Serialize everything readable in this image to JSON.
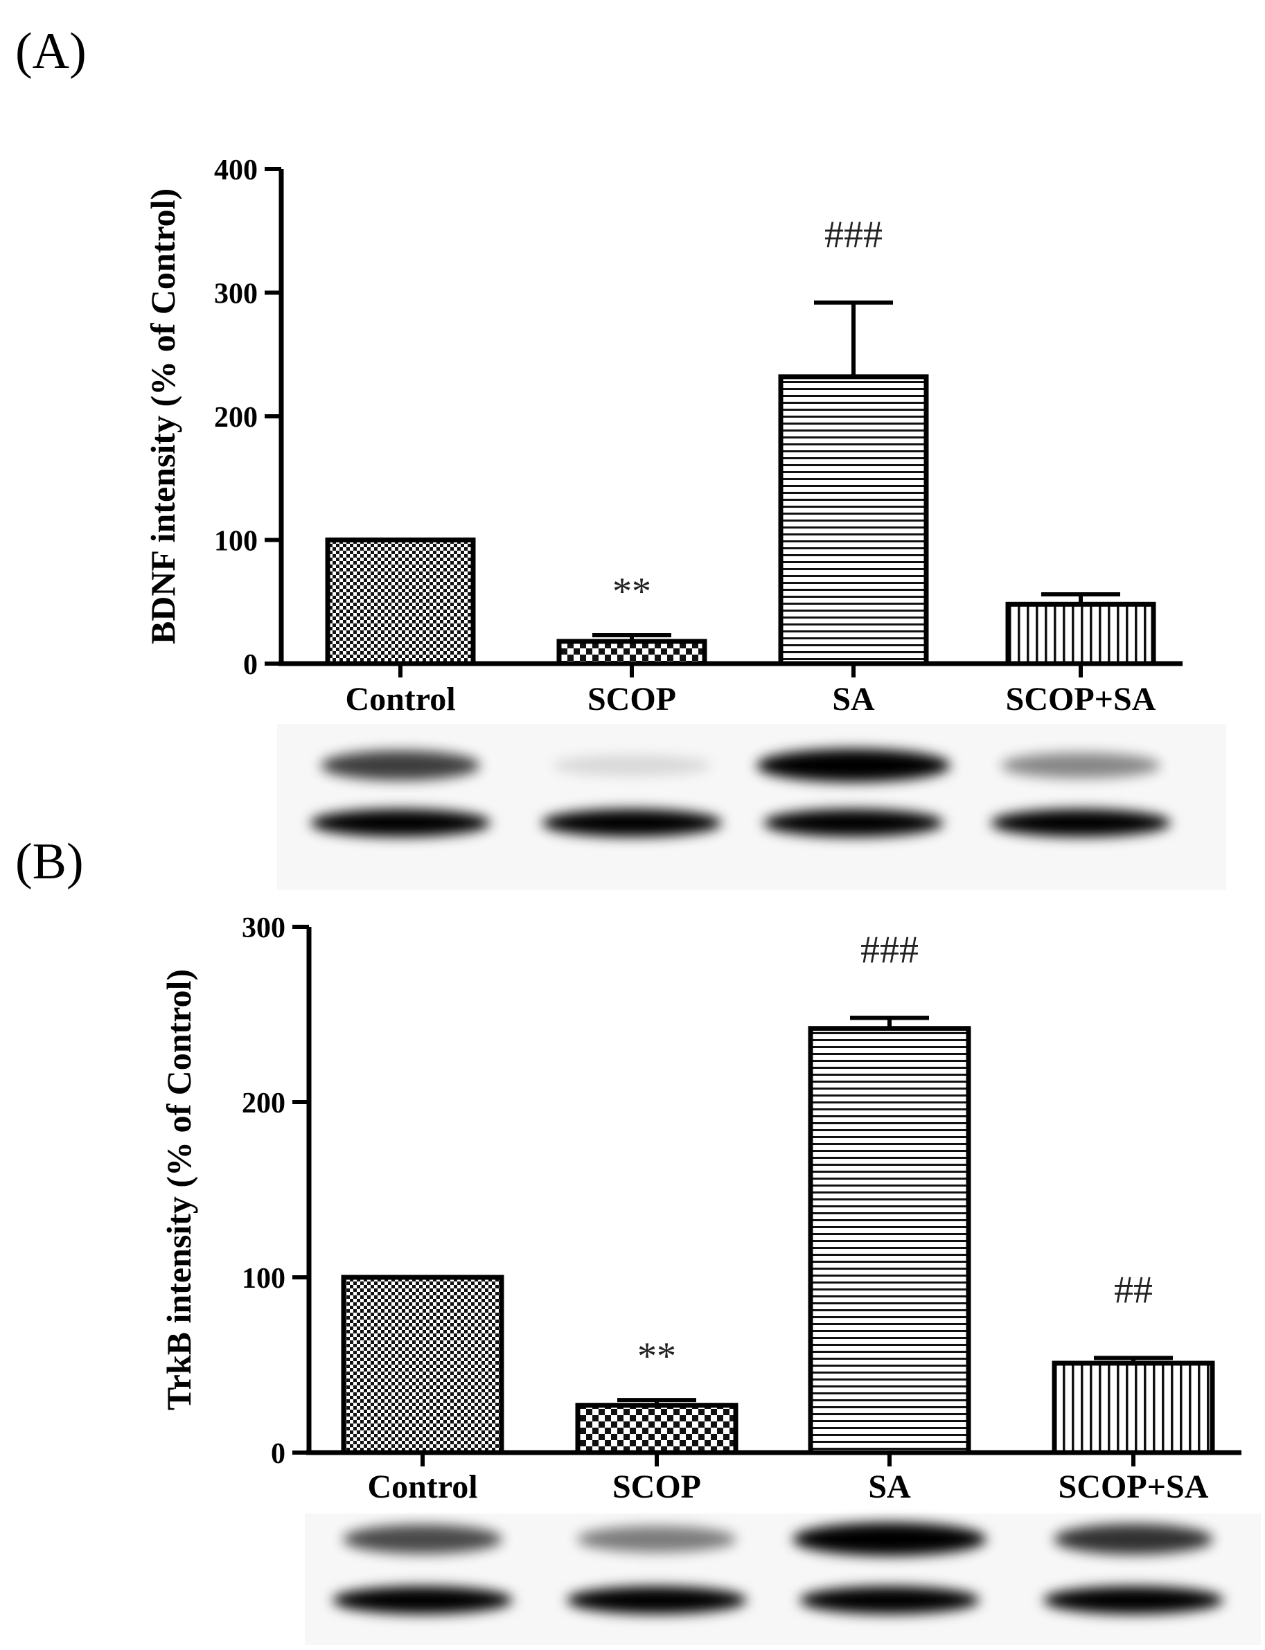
{
  "chart_data": [
    {
      "panel": "(A)",
      "type": "bar",
      "ylabel": "BDNF intensity (% of Control)",
      "xlabel": "",
      "categories": [
        "Control",
        "SCOP",
        "SA",
        "SCOP+SA"
      ],
      "values": [
        100,
        18,
        232,
        48
      ],
      "errors": [
        0,
        5,
        60,
        8
      ],
      "significance": [
        "",
        "**",
        "###",
        ""
      ],
      "patterns": [
        "checker-fine",
        "checker",
        "horizontal",
        "vertical"
      ],
      "ylim": [
        0,
        400
      ],
      "yticks": [
        0,
        100,
        200,
        300,
        400
      ],
      "blot": {
        "band1_intensity": [
          0.75,
          0.12,
          1.0,
          0.45
        ],
        "band2_intensity": [
          1.0,
          1.0,
          1.0,
          1.0
        ]
      }
    },
    {
      "panel": "(B)",
      "type": "bar",
      "ylabel": "TrkB intensity (% of Control)",
      "xlabel": "",
      "categories": [
        "Control",
        "SCOP",
        "SA",
        "SCOP+SA"
      ],
      "values": [
        100,
        27,
        242,
        51
      ],
      "errors": [
        0,
        3,
        6,
        3
      ],
      "significance": [
        "",
        "**",
        "###",
        "##"
      ],
      "patterns": [
        "checker-fine",
        "checker",
        "horizontal",
        "vertical"
      ],
      "ylim": [
        0,
        300
      ],
      "yticks": [
        0,
        100,
        200,
        300
      ],
      "blot": {
        "band1_intensity": [
          0.7,
          0.5,
          1.0,
          0.8
        ],
        "band2_intensity": [
          1.0,
          1.0,
          1.0,
          1.0
        ]
      }
    }
  ]
}
